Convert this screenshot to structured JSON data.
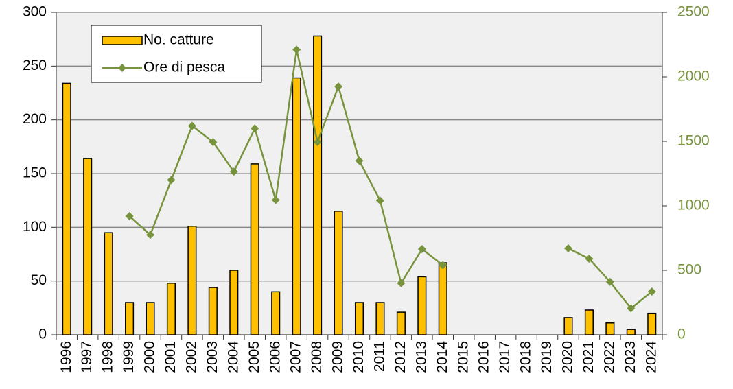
{
  "chart_data": {
    "type": "bar+line",
    "categories": [
      "1996",
      "1997",
      "1998",
      "1999",
      "2000",
      "2001",
      "2002",
      "2003",
      "2004",
      "2005",
      "2006",
      "2007",
      "2008",
      "2009",
      "2010",
      "2011",
      "2012",
      "2013",
      "2014",
      "2015",
      "2016",
      "2017",
      "2018",
      "2019",
      "2020",
      "2021",
      "2022",
      "2023",
      "2024"
    ],
    "series": [
      {
        "name": "No. catture",
        "type": "bar",
        "color": "#ffc000",
        "values": [
          234,
          164,
          95,
          30,
          30,
          48,
          101,
          44,
          60,
          159,
          40,
          239,
          278,
          115,
          30,
          30,
          21,
          54,
          67,
          null,
          null,
          null,
          null,
          null,
          16,
          23,
          11,
          5,
          20
        ]
      },
      {
        "name": "Ore di pesca",
        "type": "line",
        "color": "#77933c",
        "axis": "y2",
        "values": [
          null,
          null,
          null,
          920,
          775,
          1200,
          1620,
          1495,
          1265,
          1600,
          1045,
          2210,
          1495,
          1925,
          1350,
          1040,
          400,
          665,
          540,
          null,
          null,
          null,
          null,
          null,
          670,
          590,
          410,
          205,
          335
        ]
      }
    ],
    "ylim": [
      0,
      300
    ],
    "yticks": [
      0,
      50,
      100,
      150,
      200,
      250,
      300
    ],
    "y2lim": [
      0,
      2500
    ],
    "y2ticks": [
      0,
      500,
      1000,
      1500,
      2000,
      2500
    ],
    "grid": true,
    "legend": "upper-left"
  }
}
